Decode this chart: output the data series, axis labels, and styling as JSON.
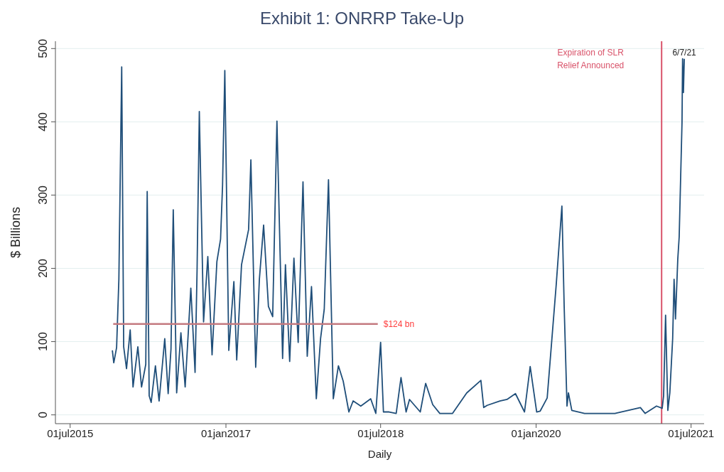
{
  "chart_data": {
    "type": "line",
    "title": "Exhibit 1: ONRRP Take-Up",
    "xlabel": "Daily",
    "ylabel": "$ Billions",
    "xlim": [
      "2015-05-10",
      "2021-08-16"
    ],
    "xticks": [
      {
        "value": "2015-07-01",
        "label": "01jul2015"
      },
      {
        "value": "2017-01-01",
        "label": "01jan2017"
      },
      {
        "value": "2018-07-01",
        "label": "01jul2018"
      },
      {
        "value": "2020-01-01",
        "label": "01jan2020"
      },
      {
        "value": "2021-07-01",
        "label": "01jul2021"
      }
    ],
    "ylim": [
      -12,
      510
    ],
    "yticks": [
      0,
      100,
      200,
      300,
      400,
      500
    ],
    "grid": "y",
    "legend": false,
    "x": [
      "2015-11-27",
      "2015-12-02",
      "2015-12-12",
      "2015-12-20",
      "2015-12-30",
      "2016-01-06",
      "2016-01-16",
      "2016-01-29",
      "2016-02-08",
      "2016-02-25",
      "2016-03-09",
      "2016-03-24",
      "2016-03-29",
      "2016-04-05",
      "2016-04-12",
      "2016-04-27",
      "2016-05-10",
      "2016-05-30",
      "2016-06-11",
      "2016-06-21",
      "2016-06-29",
      "2016-07-11",
      "2016-07-26",
      "2016-08-10",
      "2016-08-30",
      "2016-09-14",
      "2016-09-21",
      "2016-09-29",
      "2016-10-14",
      "2016-10-29",
      "2016-11-13",
      "2016-11-30",
      "2016-12-13",
      "2016-12-20",
      "2016-12-28",
      "2017-01-11",
      "2017-01-29",
      "2017-02-08",
      "2017-02-25",
      "2017-03-22",
      "2017-03-30",
      "2017-04-16",
      "2017-04-29",
      "2017-05-14",
      "2017-05-31",
      "2017-06-15",
      "2017-06-30",
      "2017-07-20",
      "2017-07-30",
      "2017-08-14",
      "2017-08-29",
      "2017-09-13",
      "2017-09-30",
      "2017-10-15",
      "2017-10-30",
      "2017-11-16",
      "2017-12-01",
      "2017-12-14",
      "2017-12-29",
      "2018-01-15",
      "2018-02-02",
      "2018-02-19",
      "2018-03-11",
      "2018-03-26",
      "2018-04-22",
      "2018-05-27",
      "2018-06-14",
      "2018-07-01",
      "2018-07-11",
      "2018-07-31",
      "2018-08-25",
      "2018-09-11",
      "2018-09-29",
      "2018-10-11",
      "2018-11-18",
      "2018-12-07",
      "2019-01-01",
      "2019-01-26",
      "2019-03-12",
      "2019-05-01",
      "2019-06-20",
      "2019-06-30",
      "2019-07-12",
      "2019-08-26",
      "2019-09-20",
      "2019-10-20",
      "2019-11-21",
      "2019-12-11",
      "2020-01-03",
      "2020-01-15",
      "2020-02-09",
      "2020-03-12",
      "2020-04-01",
      "2020-04-09",
      "2020-04-19",
      "2020-04-24",
      "2020-05-06",
      "2020-06-20",
      "2020-10-05",
      "2021-01-03",
      "2021-01-20",
      "2021-03-01",
      "2021-03-21",
      "2021-03-26",
      "2021-04-02",
      "2021-04-10",
      "2021-04-17",
      "2021-04-27",
      "2021-05-02",
      "2021-05-07",
      "2021-05-15",
      "2021-05-20",
      "2021-05-30",
      "2021-06-01",
      "2021-06-04",
      "2021-06-07"
    ],
    "series": [
      {
        "type": "line",
        "color": "#1f4e79",
        "values": [
          88,
          71,
          92,
          185,
          475,
          93,
          63,
          116,
          38,
          93,
          38,
          69,
          305,
          26,
          17,
          67,
          19,
          104,
          29,
          90,
          280,
          30,
          112,
          38,
          173,
          58,
          196,
          414,
          127,
          216,
          82,
          209,
          240,
          313,
          470,
          88,
          182,
          75,
          205,
          253,
          348,
          65,
          185,
          259,
          148,
          134,
          401,
          77,
          205,
          73,
          214,
          99,
          318,
          80,
          175,
          22,
          104,
          144,
          321,
          22,
          67,
          46,
          4,
          19,
          12,
          22,
          2,
          99,
          4,
          4,
          2,
          51,
          4,
          21,
          4,
          43,
          14,
          2,
          2,
          30,
          47,
          10,
          13,
          19,
          21,
          29,
          4,
          66,
          4,
          5,
          23,
          178,
          285,
          148,
          12,
          30,
          6,
          2,
          2,
          10,
          2,
          12,
          9,
          26,
          136,
          6,
          30,
          104,
          185,
          131,
          212,
          243,
          399,
          486,
          440,
          486
        ]
      },
      {
        "type": "line",
        "name": "$124 bn",
        "color": "#c47a80",
        "x": [
          "2015-11-30",
          "2018-06-21"
        ],
        "values": [
          124,
          124
        ]
      }
    ],
    "ref_lines": [
      {
        "axis": "x",
        "value": "2021-03-19",
        "label": "Expiration of SLR Relief Announced",
        "color": "#d9536a"
      }
    ],
    "annotations": [
      {
        "text": "6/7/21",
        "x": "2021-06-07",
        "y": 486
      }
    ]
  }
}
